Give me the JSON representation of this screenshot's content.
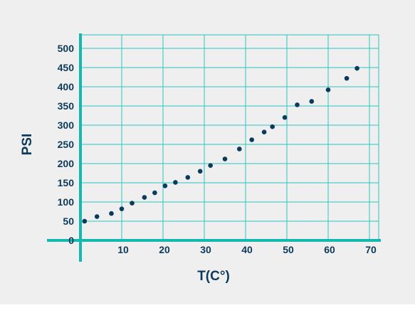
{
  "chart_data": {
    "type": "scatter",
    "xlabel": "T(C°)",
    "ylabel": "PSI",
    "xlim": [
      0,
      72
    ],
    "ylim": [
      0,
      500
    ],
    "x_ticks": [
      10,
      20,
      30,
      40,
      50,
      60,
      70
    ],
    "y_ticks": [
      0,
      50,
      100,
      150,
      200,
      250,
      300,
      350,
      400,
      450,
      500
    ],
    "x_tick_labels": [
      "10",
      "20",
      "30",
      "40",
      "50",
      "60",
      "70"
    ],
    "y_tick_labels": [
      "0",
      "50",
      "100",
      "150",
      "200",
      "250",
      "300",
      "350",
      "400",
      "450",
      "500"
    ],
    "grid": true,
    "colors": {
      "grid": "#2ec4c0",
      "axis": "#13b8ae",
      "points": "#0b3a5a",
      "text": "#0b3a5a",
      "background": "#efefef"
    },
    "series": [
      {
        "points": [
          [
            1,
            50
          ],
          [
            4,
            62
          ],
          [
            7.5,
            70
          ],
          [
            10,
            82
          ],
          [
            12.5,
            97
          ],
          [
            15.5,
            112
          ],
          [
            18,
            124
          ],
          [
            20.5,
            142
          ],
          [
            23,
            151
          ],
          [
            26,
            164
          ],
          [
            29,
            180
          ],
          [
            31.5,
            195
          ],
          [
            35,
            212
          ],
          [
            38.5,
            238
          ],
          [
            41.5,
            262
          ],
          [
            44.5,
            282
          ],
          [
            46.5,
            296
          ],
          [
            49.5,
            320
          ],
          [
            52.5,
            353
          ],
          [
            56,
            362
          ],
          [
            60,
            392
          ],
          [
            64.5,
            422
          ],
          [
            67,
            448
          ]
        ]
      }
    ]
  }
}
